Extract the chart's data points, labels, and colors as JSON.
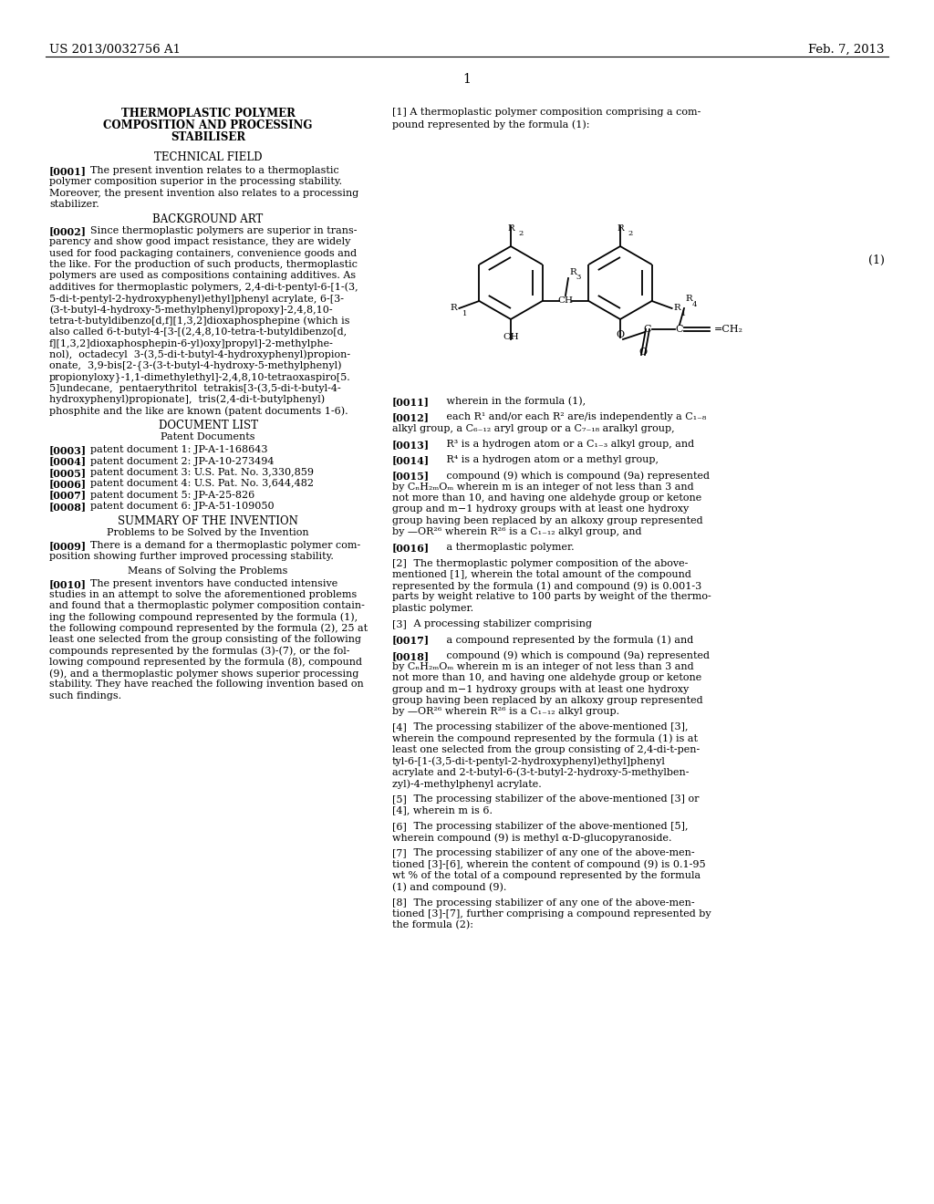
{
  "background_color": "#ffffff",
  "header_left": "US 2013/0032756 A1",
  "header_right": "Feb. 7, 2013",
  "page_number": "1",
  "fig_width": 10.24,
  "fig_height": 13.2,
  "dpi": 100
}
